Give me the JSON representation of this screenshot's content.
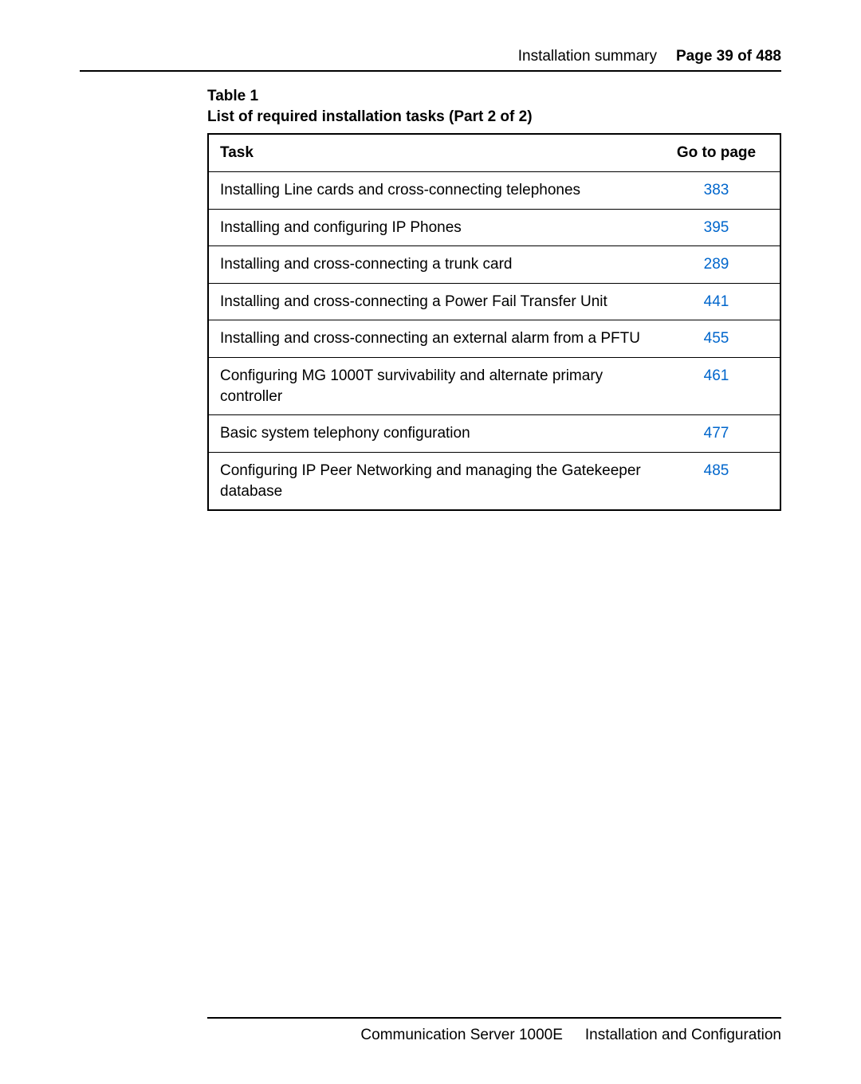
{
  "header": {
    "section": "Installation summary",
    "page_label": "Page 39 of 488"
  },
  "table": {
    "caption_line1": "Table 1",
    "caption_line2": "List of required installation tasks (Part 2 of 2)",
    "columns": {
      "task": "Task",
      "page": "Go to page"
    },
    "rows": [
      {
        "task": "Installing Line cards and cross-connecting telephones",
        "page": "383"
      },
      {
        "task": "Installing and configuring IP Phones",
        "page": "395"
      },
      {
        "task": "Installing and cross-connecting a trunk card",
        "page": "289"
      },
      {
        "task": "Installing and cross-connecting a Power Fail Transfer Unit",
        "page": "441"
      },
      {
        "task": "Installing and cross-connecting an external alarm from a PFTU",
        "page": "455"
      },
      {
        "task": "Configuring MG 1000T survivability and alternate primary controller",
        "page": "461"
      },
      {
        "task": "Basic system telephony configuration",
        "page": "477"
      },
      {
        "task": "Configuring IP Peer Networking and managing the Gatekeeper database",
        "page": "485"
      }
    ],
    "link_color": "#0066cc"
  },
  "footer": {
    "left": "Communication Server 1000E",
    "right": "Installation and Configuration"
  }
}
